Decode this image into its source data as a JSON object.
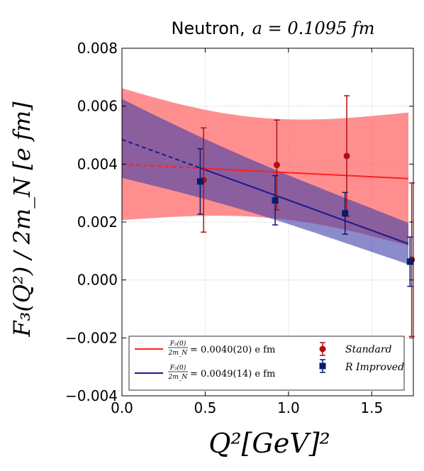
{
  "chart_data": {
    "type": "scatter",
    "title_prefix": "Neutron,",
    "title_math": "a = 0.1095 fm",
    "xlabel": "Q²[GeV]²",
    "ylabel": "F₃(Q²) / 2m_N [e fm]",
    "xlim": [
      0.0,
      1.75
    ],
    "ylim": [
      -0.004,
      0.008
    ],
    "xticks": [
      0.0,
      0.5,
      1.0,
      1.5
    ],
    "xtick_labels": [
      "0.0",
      "0.5",
      "1.0",
      "1.5"
    ],
    "yticks": [
      -0.004,
      -0.002,
      0.0,
      0.002,
      0.004,
      0.006,
      0.008
    ],
    "ytick_labels": [
      "−0.004",
      "−0.002",
      "0.000",
      "0.002",
      "0.004",
      "0.006",
      "0.008"
    ],
    "grid": true,
    "legend_position": "bottom",
    "series": [
      {
        "name": "Standard",
        "color": "#b01010",
        "marker": "circle",
        "x": [
          0.49,
          0.93,
          1.35,
          1.74
        ],
        "y": [
          0.00345,
          0.00397,
          0.00428,
          0.0007
        ],
        "yerr": [
          0.0018,
          0.00155,
          0.00208,
          0.00265
        ]
      },
      {
        "name": "R Improved",
        "color": "#0a1a6e",
        "marker": "square",
        "x": [
          0.47,
          0.92,
          1.34,
          1.73
        ],
        "y": [
          0.0034,
          0.00275,
          0.0023,
          0.00063
        ],
        "yerr": [
          0.00113,
          0.00085,
          0.00072,
          0.00085
        ]
      }
    ],
    "fits": [
      {
        "name": "F3(0)/2mN = 0.0040(20) e fm",
        "legend_value": "= 0.0040(20) e fm",
        "line_color": "#ff2020",
        "band_color": "#ff6a6a",
        "x_solid": [
          0.47,
          1.72
        ],
        "x_dashed": [
          0.0,
          0.47
        ],
        "line_y": [
          0.00399,
          0.0035
        ],
        "band_upper": [
          0.00662,
          0.00578
        ],
        "band_lower": [
          0.00207,
          0.00118
        ],
        "band_x": [
          0.0,
          1.72
        ]
      },
      {
        "name": "F3(0)/2mN = 0.0049(14) e fm",
        "legend_value": "= 0.0049(14) e fm",
        "line_color": "#1a1a90",
        "band_color": "#3d3da8",
        "x_solid": [
          0.47,
          1.72
        ],
        "x_dashed": [
          0.0,
          0.47
        ],
        "line_y": [
          0.00485,
          0.00125
        ],
        "band_upper": [
          0.00625,
          0.00197
        ],
        "band_lower": [
          0.00352,
          0.00054
        ],
        "band_x": [
          0.0,
          1.72
        ]
      }
    ]
  }
}
